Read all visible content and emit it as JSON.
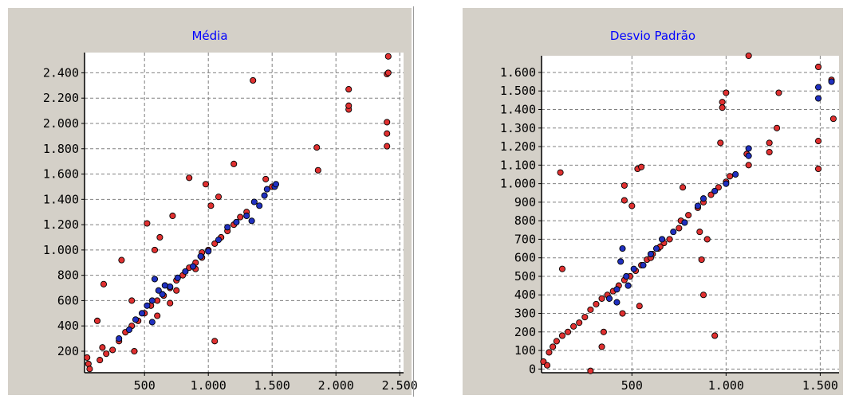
{
  "charts": {
    "colors": {
      "panel_bg": "#d4d0c8",
      "plot_bg": "#ffffff",
      "grid": "#808080",
      "title": "#0000ff",
      "point_red": "#e03030",
      "point_blue": "#2030c0",
      "outline": "#000000"
    }
  },
  "chart_data": [
    {
      "type": "scatter",
      "title": "Média",
      "xlabel": "",
      "ylabel": "",
      "xlim": [
        30,
        2530
      ],
      "ylim": [
        30,
        2560
      ],
      "xticks": [
        500,
        1000,
        1500,
        2000,
        2500
      ],
      "xtick_labels": [
        "500",
        "1.000",
        "1.500",
        "2.000",
        "2.500"
      ],
      "yticks": [
        200,
        400,
        600,
        800,
        1000,
        1200,
        1400,
        1600,
        1800,
        2000,
        2200,
        2400
      ],
      "ytick_labels": [
        "200",
        "400",
        "600",
        "800",
        "1.000",
        "1.200",
        "1.400",
        "1.600",
        "1.800",
        "2.000",
        "2.200",
        "2.400"
      ],
      "grid": true,
      "series": [
        {
          "color": "red",
          "points": [
            [
              50,
              150
            ],
            [
              60,
              100
            ],
            [
              70,
              60
            ],
            [
              150,
              130
            ],
            [
              170,
              230
            ],
            [
              200,
              180
            ],
            [
              250,
              210
            ],
            [
              300,
              280
            ],
            [
              350,
              350
            ],
            [
              400,
              400
            ],
            [
              450,
              440
            ],
            [
              500,
              500
            ],
            [
              550,
              560
            ],
            [
              600,
              600
            ],
            [
              650,
              640
            ],
            [
              700,
              700
            ],
            [
              750,
              760
            ],
            [
              800,
              800
            ],
            [
              850,
              860
            ],
            [
              900,
              900
            ],
            [
              950,
              940
            ],
            [
              1000,
              1000
            ],
            [
              1050,
              1050
            ],
            [
              1100,
              1100
            ],
            [
              1150,
              1150
            ],
            [
              1200,
              1200
            ],
            [
              1250,
              1260
            ],
            [
              1300,
              1300
            ],
            [
              130,
              440
            ],
            [
              180,
              730
            ],
            [
              320,
              920
            ],
            [
              400,
              600
            ],
            [
              520,
              1210
            ],
            [
              580,
              1000
            ],
            [
              620,
              1100
            ],
            [
              720,
              1270
            ],
            [
              850,
              1570
            ],
            [
              980,
              1520
            ],
            [
              1020,
              1350
            ],
            [
              1080,
              1420
            ],
            [
              1200,
              1680
            ],
            [
              1350,
              2340
            ],
            [
              1450,
              1560
            ],
            [
              1500,
              1500
            ],
            [
              1850,
              1810
            ],
            [
              1860,
              1630
            ],
            [
              2100,
              2270
            ],
            [
              2100,
              2110
            ],
            [
              2100,
              2140
            ],
            [
              2400,
              2390
            ],
            [
              2400,
              2010
            ],
            [
              2400,
              1920
            ],
            [
              2400,
              1820
            ],
            [
              2410,
              2530
            ],
            [
              2410,
              2400
            ],
            [
              1050,
              280
            ],
            [
              420,
              200
            ],
            [
              600,
              480
            ],
            [
              700,
              580
            ],
            [
              750,
              680
            ],
            [
              900,
              850
            ],
            [
              950,
              980
            ]
          ]
        },
        {
          "color": "blue",
          "points": [
            [
              300,
              300
            ],
            [
              380,
              370
            ],
            [
              430,
              450
            ],
            [
              480,
              500
            ],
            [
              520,
              560
            ],
            [
              560,
              600
            ],
            [
              580,
              770
            ],
            [
              640,
              650
            ],
            [
              700,
              710
            ],
            [
              760,
              780
            ],
            [
              820,
              830
            ],
            [
              880,
              870
            ],
            [
              940,
              950
            ],
            [
              1000,
              990
            ],
            [
              1080,
              1080
            ],
            [
              1150,
              1180
            ],
            [
              1220,
              1220
            ],
            [
              1300,
              1270
            ],
            [
              1340,
              1230
            ],
            [
              1360,
              1380
            ],
            [
              1400,
              1350
            ],
            [
              1440,
              1430
            ],
            [
              1460,
              1480
            ],
            [
              1520,
              1500
            ],
            [
              1530,
              1520
            ],
            [
              560,
              430
            ],
            [
              610,
              680
            ],
            [
              660,
              720
            ]
          ]
        }
      ]
    },
    {
      "type": "scatter",
      "title": "Desvio Padrão",
      "xlabel": "",
      "ylabel": "",
      "xlim": [
        20,
        1600
      ],
      "ylim": [
        -20,
        1690
      ],
      "xticks": [
        500,
        1000,
        1500
      ],
      "xtick_labels": [
        "500",
        "1.000",
        "1.500"
      ],
      "yticks": [
        0,
        100,
        200,
        300,
        400,
        500,
        600,
        700,
        800,
        900,
        1000,
        1100,
        1200,
        1300,
        1400,
        1500,
        1600
      ],
      "ytick_labels": [
        "0",
        "100",
        "200",
        "300",
        "400",
        "500",
        "600",
        "700",
        "800",
        "900",
        "1.000",
        "1.100",
        "1.200",
        "1.300",
        "1.400",
        "1.500",
        "1.600"
      ],
      "grid": true,
      "series": [
        {
          "color": "red",
          "points": [
            [
              30,
              40
            ],
            [
              50,
              20
            ],
            [
              60,
              90
            ],
            [
              80,
              120
            ],
            [
              100,
              150
            ],
            [
              130,
              180
            ],
            [
              160,
              200
            ],
            [
              190,
              230
            ],
            [
              220,
              250
            ],
            [
              250,
              280
            ],
            [
              280,
              320
            ],
            [
              310,
              350
            ],
            [
              340,
              380
            ],
            [
              370,
              400
            ],
            [
              400,
              420
            ],
            [
              430,
              450
            ],
            [
              460,
              480
            ],
            [
              490,
              500
            ],
            [
              520,
              530
            ],
            [
              550,
              560
            ],
            [
              580,
              590
            ],
            [
              610,
              620
            ],
            [
              640,
              650
            ],
            [
              670,
              680
            ],
            [
              700,
              700
            ],
            [
              760,
              800
            ],
            [
              800,
              830
            ],
            [
              850,
              870
            ],
            [
              880,
              900
            ],
            [
              920,
              940
            ],
            [
              960,
              980
            ],
            [
              1000,
              1010
            ],
            [
              1110,
              1160
            ],
            [
              1230,
              1220
            ],
            [
              1270,
              1300
            ],
            [
              120,
              1060
            ],
            [
              130,
              540
            ],
            [
              280,
              -10
            ],
            [
              340,
              120
            ],
            [
              460,
              990
            ],
            [
              460,
              910
            ],
            [
              500,
              880
            ],
            [
              530,
              1080
            ],
            [
              550,
              1090
            ],
            [
              540,
              340
            ],
            [
              770,
              980
            ],
            [
              860,
              740
            ],
            [
              870,
              590
            ],
            [
              880,
              400
            ],
            [
              900,
              700
            ],
            [
              940,
              180
            ],
            [
              970,
              1220
            ],
            [
              980,
              1440
            ],
            [
              980,
              1410
            ],
            [
              1000,
              1490
            ],
            [
              1120,
              1690
            ],
            [
              1280,
              1490
            ],
            [
              1490,
              1630
            ],
            [
              1490,
              1230
            ],
            [
              1490,
              1080
            ],
            [
              1570,
              1350
            ],
            [
              1560,
              1560
            ],
            [
              1230,
              1170
            ],
            [
              1120,
              1100
            ],
            [
              1020,
              1040
            ],
            [
              600,
              600
            ],
            [
              650,
              660
            ],
            [
              750,
              760
            ],
            [
              450,
              300
            ],
            [
              350,
              200
            ]
          ]
        },
        {
          "color": "blue",
          "points": [
            [
              380,
              380
            ],
            [
              420,
              430
            ],
            [
              440,
              580
            ],
            [
              450,
              650
            ],
            [
              470,
              500
            ],
            [
              510,
              540
            ],
            [
              560,
              560
            ],
            [
              600,
              620
            ],
            [
              630,
              650
            ],
            [
              660,
              700
            ],
            [
              720,
              740
            ],
            [
              780,
              790
            ],
            [
              850,
              880
            ],
            [
              880,
              920
            ],
            [
              940,
              960
            ],
            [
              1000,
              1000
            ],
            [
              1050,
              1050
            ],
            [
              1120,
              1150
            ],
            [
              1120,
              1190
            ],
            [
              1490,
              1460
            ],
            [
              1490,
              1520
            ],
            [
              1560,
              1550
            ],
            [
              420,
              360
            ],
            [
              480,
              450
            ]
          ]
        }
      ]
    }
  ]
}
